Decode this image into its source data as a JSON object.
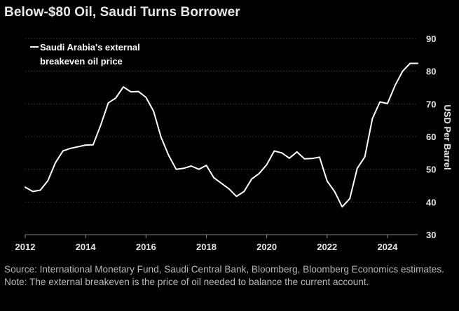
{
  "header": {
    "title": "Below-$80 Oil, Saudi Turns Borrower"
  },
  "footer": {
    "note": "Source: International Monetary Fund, Saudi Central Bank, Bloomberg, Bloomberg Economics estimates. Note: The external breakeven is the price of oil needed to balance the current account."
  },
  "colors": {
    "background": "#000000",
    "line": "#ffffff",
    "grid": "#3a3a3a",
    "text": "#e6e6e6"
  },
  "chart_data": {
    "type": "line",
    "ylabel": "USD Per Barrel",
    "xlim": [
      2012,
      2025
    ],
    "ylim": [
      30,
      90
    ],
    "grid": true,
    "legend_position": "top-left",
    "x_ticks": [
      "2012",
      "2014",
      "2016",
      "2018",
      "2020",
      "2022",
      "2024"
    ],
    "y_ticks": [
      "30",
      "40",
      "50",
      "60",
      "70",
      "80",
      "90"
    ],
    "series": [
      {
        "name": "Saudi Arabia's external breakeven oil price",
        "x": [
          2012.0,
          2012.25,
          2012.5,
          2012.75,
          2013.0,
          2013.25,
          2013.5,
          2013.75,
          2014.0,
          2014.25,
          2014.5,
          2014.75,
          2015.0,
          2015.25,
          2015.5,
          2015.75,
          2016.0,
          2016.25,
          2016.5,
          2016.75,
          2017.0,
          2017.25,
          2017.5,
          2017.75,
          2018.0,
          2018.25,
          2018.5,
          2018.75,
          2019.0,
          2019.25,
          2019.5,
          2019.75,
          2020.0,
          2020.25,
          2020.5,
          2020.75,
          2021.0,
          2021.25,
          2021.5,
          2021.75,
          2022.0,
          2022.25,
          2022.5,
          2022.75,
          2023.0,
          2023.25,
          2023.5,
          2023.75,
          2024.0,
          2024.25,
          2024.5,
          2024.75,
          2025.0
        ],
        "y": [
          44.5,
          43.2,
          43.6,
          46.5,
          52.0,
          55.6,
          56.4,
          56.9,
          57.4,
          57.5,
          63.5,
          70.3,
          71.8,
          75.2,
          73.7,
          73.8,
          72.0,
          67.8,
          59.8,
          54.3,
          50.0,
          50.3,
          51.0,
          50.0,
          51.2,
          47.4,
          45.7,
          44.0,
          41.7,
          43.2,
          47.0,
          48.7,
          51.4,
          55.6,
          55.0,
          53.4,
          55.3,
          53.2,
          53.3,
          53.7,
          46.4,
          43.2,
          38.5,
          41.0,
          50.3,
          53.8,
          65.5,
          70.6,
          70.1,
          75.6,
          80.0,
          82.4,
          82.4
        ]
      }
    ]
  }
}
